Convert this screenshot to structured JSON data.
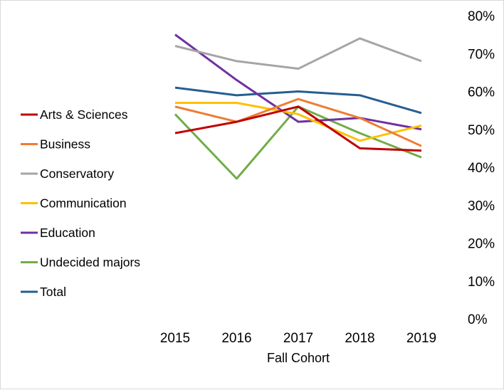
{
  "chart_data": {
    "type": "line",
    "title": "",
    "xlabel": "Fall Cohort",
    "ylabel": "",
    "categories": [
      "2015",
      "2016",
      "2017",
      "2018",
      "2019"
    ],
    "ylim": [
      0,
      80
    ],
    "yticks": [
      "0%",
      "10%",
      "20%",
      "30%",
      "40%",
      "50%",
      "60%",
      "70%",
      "80%"
    ],
    "grid": false,
    "legend_position": "left",
    "series": [
      {
        "name": "Arts & Sciences",
        "color": "#c00000",
        "values": [
          49,
          52,
          56,
          45,
          44.4
        ]
      },
      {
        "name": "Business",
        "color": "#ed7d31",
        "values": [
          56,
          52,
          58,
          53,
          45.6
        ]
      },
      {
        "name": "Conservatory",
        "color": "#a5a5a5",
        "values": [
          72,
          68,
          66,
          74,
          68
        ]
      },
      {
        "name": "Communication",
        "color": "#ffc000",
        "values": [
          57,
          57,
          54,
          47,
          51
        ]
      },
      {
        "name": "Education",
        "color": "#7030a0",
        "values": [
          75,
          63,
          52,
          53,
          50
        ]
      },
      {
        "name": "Undecided majors",
        "color": "#70ad47",
        "values": [
          54,
          37,
          56,
          49,
          42.6
        ]
      },
      {
        "name": "Total",
        "color": "#255e91",
        "values": [
          61,
          59,
          60,
          59,
          54.3
        ]
      }
    ]
  }
}
